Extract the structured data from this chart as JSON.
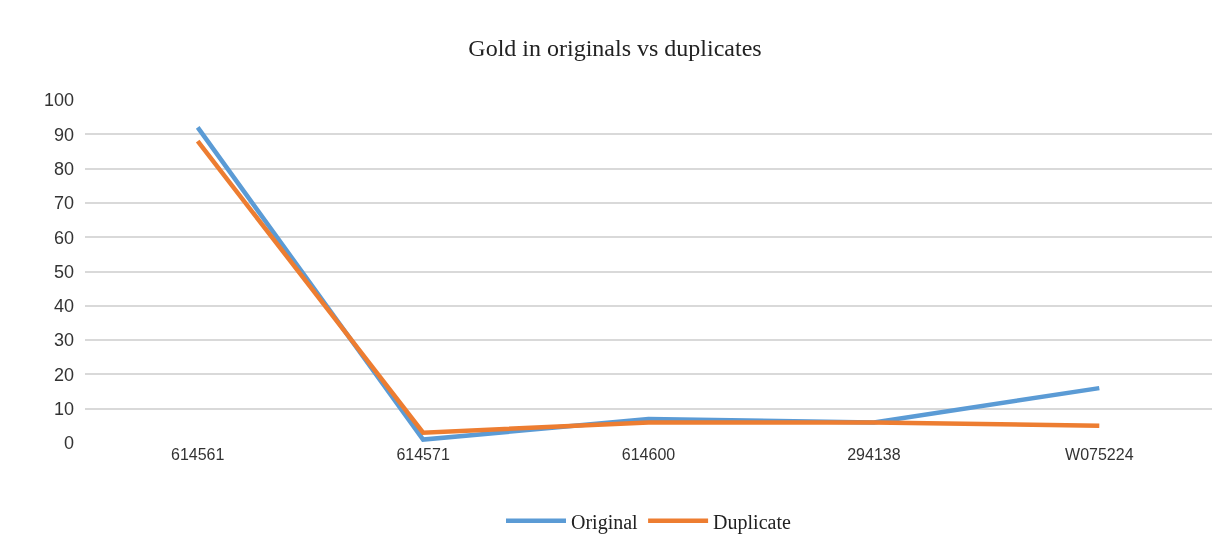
{
  "chart_data": {
    "type": "line",
    "title": "Gold in originals vs duplicates",
    "categories": [
      "614561",
      "614571",
      "614600",
      "294138",
      "W075224"
    ],
    "series": [
      {
        "name": "Original",
        "color": "#5b9bd5",
        "values": [
          92,
          1,
          7,
          6,
          16
        ]
      },
      {
        "name": "Duplicate",
        "color": "#ed7d31",
        "values": [
          88,
          3,
          6,
          6,
          5
        ]
      }
    ],
    "ylim": [
      0,
      100
    ],
    "yticks": [
      0,
      10,
      20,
      30,
      40,
      50,
      60,
      70,
      80,
      90,
      100
    ],
    "grid": "y",
    "legend": "bottom",
    "marker": "none",
    "line_style": "solid"
  }
}
